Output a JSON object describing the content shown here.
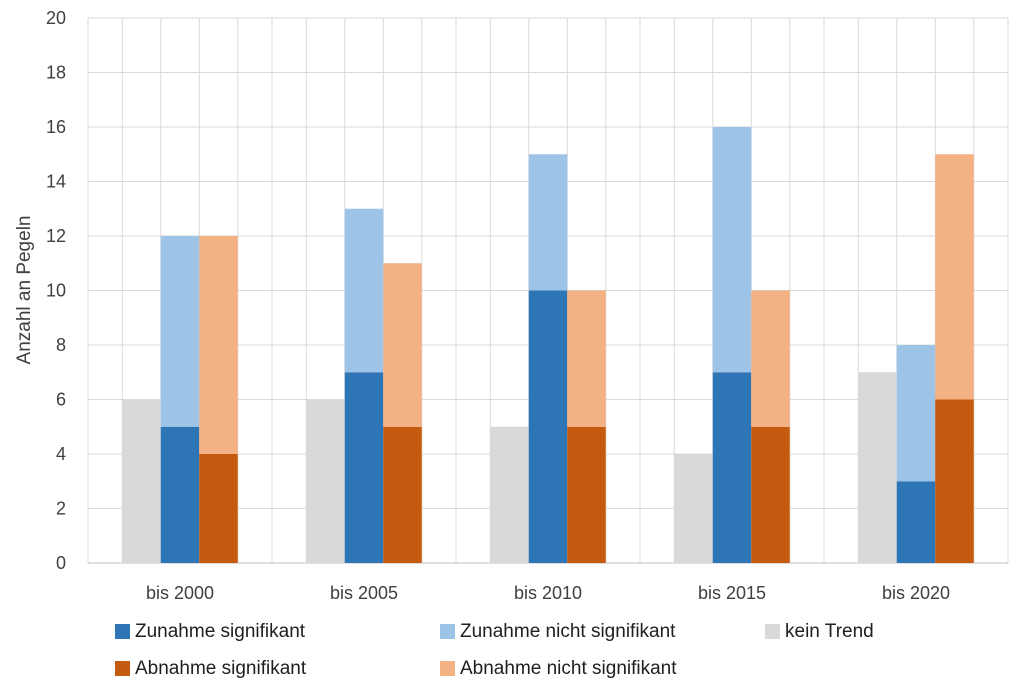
{
  "chart_data": {
    "type": "bar",
    "stacked_groups": true,
    "title": "",
    "xlabel": "",
    "ylabel": "Anzahl an Pegeln",
    "ylim": [
      0,
      20
    ],
    "yticks": [
      0,
      2,
      4,
      6,
      8,
      10,
      12,
      14,
      16,
      18,
      20
    ],
    "grid": true,
    "legend_position": "bottom",
    "categories": [
      "bis 2000",
      "bis 2005",
      "bis 2010",
      "bis 2015",
      "bis 2020"
    ],
    "series": [
      {
        "name": "kein Trend",
        "stack": "trend",
        "color": "#d9d9d9",
        "values": [
          6,
          6,
          5,
          4,
          7
        ]
      },
      {
        "name": "Zunahme signifikant",
        "stack": "zunahme",
        "color": "#2e75b6",
        "values": [
          5,
          7,
          10,
          7,
          3
        ]
      },
      {
        "name": "Zunahme nicht signifikant",
        "stack": "zunahme",
        "color": "#9dc3e6",
        "values": [
          7,
          6,
          5,
          9,
          5
        ]
      },
      {
        "name": "Abnahme signifikant",
        "stack": "abnahme",
        "color": "#c55a11",
        "values": [
          4,
          5,
          5,
          5,
          6
        ]
      },
      {
        "name": "Abnahme nicht signifikant",
        "stack": "abnahme",
        "color": "#f4b183",
        "values": [
          8,
          6,
          5,
          5,
          9
        ]
      }
    ],
    "legend": [
      [
        "Zunahme signifikant",
        "Zunahme nicht signifikant",
        "kein Trend"
      ],
      [
        "Abnahme signifikant",
        "Abnahme nicht signifikant"
      ]
    ]
  }
}
